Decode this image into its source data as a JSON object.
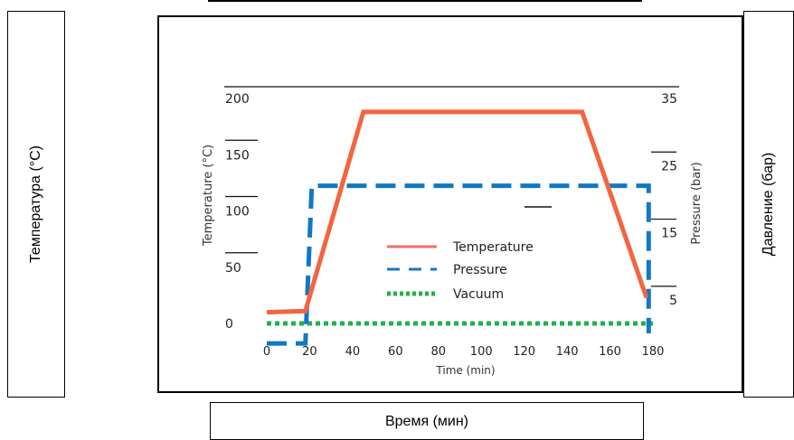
{
  "outer": {
    "left_label": "Температура (°C)",
    "right_label": "Давление (бар)",
    "bottom_label": "Время (мин)"
  },
  "colors": {
    "temperature": "#f26540",
    "pressure": "#1278c2",
    "vacuum": "#23b04b",
    "legend_temperature": "#ef6f6c"
  },
  "chart_data": {
    "type": "line",
    "xlabel": "Time (min)",
    "ylabel": "Temperature (°C)",
    "y2label": "Pressure (bar)",
    "xlim": [
      0,
      180
    ],
    "ylim": [
      0,
      200
    ],
    "y2lim": [
      0,
      35
    ],
    "x_ticks": [
      0,
      20,
      40,
      60,
      80,
      100,
      120,
      140,
      160,
      180
    ],
    "y_ticks": [
      0,
      50,
      100,
      150,
      200
    ],
    "y2_ticks": [
      5,
      15,
      25,
      35
    ],
    "legend_position": "center",
    "series": [
      {
        "name": "Temperature",
        "axis": "left",
        "style": "solid",
        "x": [
          0,
          18,
          45,
          147,
          177
        ],
        "y": [
          10,
          11,
          188,
          188,
          23
        ]
      },
      {
        "name": "Pressure",
        "axis": "right",
        "style": "dashed",
        "x": [
          0,
          18,
          21,
          173,
          178,
          178
        ],
        "y": [
          -1.5,
          -1.5,
          22,
          22,
          22,
          0
        ]
      },
      {
        "name": "Vacuum",
        "axis": "left",
        "style": "dotted",
        "x": [
          0,
          180
        ],
        "y": [
          0,
          0
        ]
      }
    ]
  }
}
